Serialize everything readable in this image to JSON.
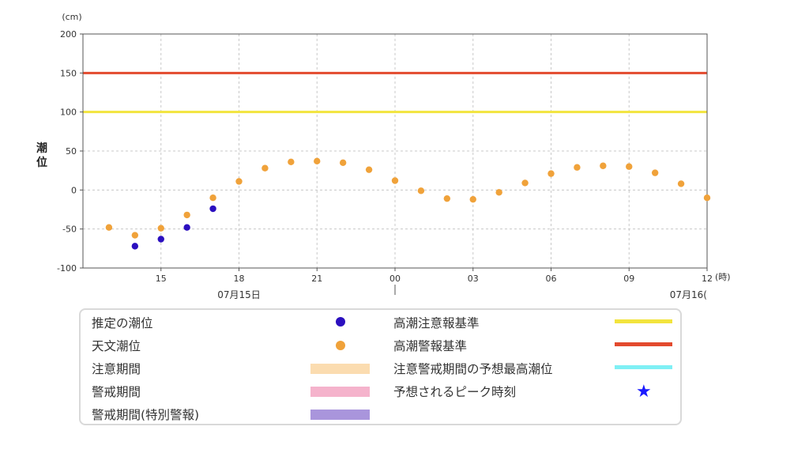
{
  "chart_data": {
    "type": "scatter",
    "y_unit": "(cm)",
    "x_unit": "(時)",
    "ylabel": "潮位",
    "ylim": [
      -100,
      200
    ],
    "yticks": [
      200,
      150,
      100,
      50,
      0,
      -50,
      -100
    ],
    "xlim": [
      12,
      36
    ],
    "xticks": [
      {
        "t": 15,
        "label": "15"
      },
      {
        "t": 18,
        "label": "18"
      },
      {
        "t": 21,
        "label": "21"
      },
      {
        "t": 24,
        "label": "00"
      },
      {
        "t": 27,
        "label": "03"
      },
      {
        "t": 30,
        "label": "06"
      },
      {
        "t": 33,
        "label": "09"
      },
      {
        "t": 36,
        "label": "12"
      }
    ],
    "date_labels": [
      {
        "t": 18,
        "label": "07月15日"
      },
      {
        "t": 36,
        "label": "07月16("
      }
    ],
    "reference_lines": [
      {
        "name": "高潮警報基準",
        "y": 150,
        "color": "#e34a2e"
      },
      {
        "name": "高潮注意報基準",
        "y": 100,
        "color": "#f2e43e"
      }
    ],
    "series": [
      {
        "name": "推定の潮位",
        "color": "#2b0fbf",
        "points": [
          [
            14,
            -72
          ],
          [
            15,
            -63
          ],
          [
            16,
            -48
          ],
          [
            17,
            -24
          ]
        ]
      },
      {
        "name": "天文潮位",
        "color": "#f0a23a",
        "points": [
          [
            13,
            -48
          ],
          [
            14,
            -58
          ],
          [
            15,
            -49
          ],
          [
            16,
            -32
          ],
          [
            17,
            -10
          ],
          [
            18,
            11
          ],
          [
            19,
            28
          ],
          [
            20,
            36
          ],
          [
            21,
            37
          ],
          [
            22,
            35
          ],
          [
            23,
            26
          ],
          [
            24,
            12
          ],
          [
            25,
            -1
          ],
          [
            26,
            -11
          ],
          [
            27,
            -12
          ],
          [
            28,
            -3
          ],
          [
            29,
            9
          ],
          [
            30,
            21
          ],
          [
            31,
            29
          ],
          [
            32,
            31
          ],
          [
            33,
            30
          ],
          [
            34,
            22
          ],
          [
            35,
            8
          ],
          [
            36,
            -10
          ]
        ]
      }
    ]
  },
  "legend": {
    "estimated_tide": {
      "label": "推定の潮位",
      "color": "#2b0fbf"
    },
    "astronomical_tide": {
      "label": "天文潮位",
      "color": "#f0a23a"
    },
    "caution_period": {
      "label": "注意期間",
      "color": "#fbdcb0"
    },
    "warning_period": {
      "label": "警戒期間",
      "color": "#f5b3cc"
    },
    "special_warning_period": {
      "label": "警戒期間(特別警報)",
      "color": "#a995dc"
    },
    "advisory_standard": {
      "label": "高潮注意報基準",
      "color": "#f2e43e"
    },
    "warning_standard": {
      "label": "高潮警報基準",
      "color": "#e34a2e"
    },
    "forecast_max": {
      "label": "注意警戒期間の予想最高潮位",
      "color": "#7ff0f5"
    },
    "expected_peak": {
      "label": "予想されるピーク時刻",
      "icon": "star-icon",
      "color": "#1a1aff"
    }
  }
}
